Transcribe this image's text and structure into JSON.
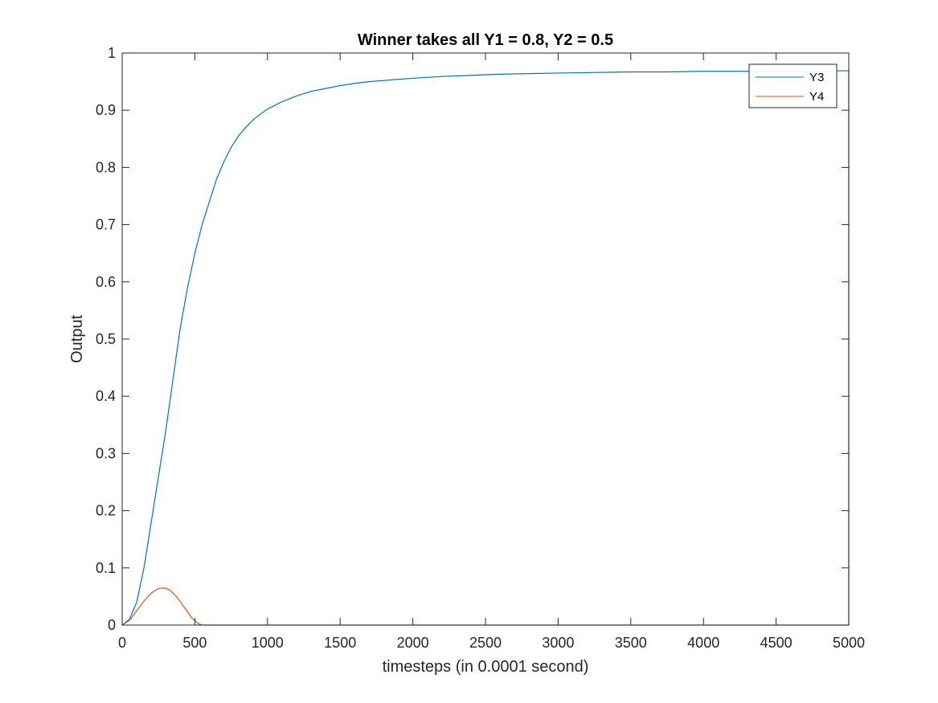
{
  "chart_data": {
    "type": "line",
    "title": "Winner takes all Y1 = 0.8, Y2 = 0.5",
    "xlabel": "timesteps (in 0.0001 second)",
    "ylabel": "Output",
    "xlim": [
      0,
      5000
    ],
    "ylim": [
      0,
      1
    ],
    "xticks": [
      0,
      500,
      1000,
      1500,
      2000,
      2500,
      3000,
      3500,
      4000,
      4500,
      5000
    ],
    "yticks": [
      0,
      0.1,
      0.2,
      0.3,
      0.4,
      0.5,
      0.6,
      0.7,
      0.8,
      0.9,
      1
    ],
    "xtick_labels": [
      "0",
      "500",
      "1000",
      "1500",
      "2000",
      "2500",
      "3000",
      "3500",
      "4000",
      "4500",
      "5000"
    ],
    "ytick_labels": [
      "0",
      "0.1",
      "0.2",
      "0.3",
      "0.4",
      "0.5",
      "0.6",
      "0.7",
      "0.8",
      "0.9",
      "1"
    ],
    "grid": false,
    "legend_position": "top-right",
    "series": [
      {
        "name": "Y3",
        "color": "#0072BD",
        "x": [
          0,
          50,
          100,
          150,
          200,
          250,
          300,
          350,
          400,
          450,
          500,
          550,
          600,
          650,
          700,
          750,
          800,
          850,
          900,
          950,
          1000,
          1100,
          1200,
          1300,
          1400,
          1500,
          1600,
          1700,
          1800,
          1900,
          2000,
          2200,
          2400,
          2600,
          2800,
          3000,
          3250,
          3500,
          3750,
          4000,
          4250,
          4500,
          4750,
          5000,
          5000
        ],
        "y": [
          0,
          0.01,
          0.04,
          0.1,
          0.18,
          0.26,
          0.34,
          0.43,
          0.52,
          0.59,
          0.65,
          0.7,
          0.74,
          0.78,
          0.81,
          0.835,
          0.855,
          0.87,
          0.883,
          0.893,
          0.902,
          0.915,
          0.925,
          0.933,
          0.938,
          0.943,
          0.947,
          0.95,
          0.952,
          0.954,
          0.956,
          0.959,
          0.961,
          0.963,
          0.964,
          0.965,
          0.966,
          0.967,
          0.967,
          0.968,
          0.968,
          0.968,
          0.969,
          0.969,
          0
        ]
      },
      {
        "name": "Y4",
        "color": "#D95319",
        "x": [
          0,
          50,
          100,
          150,
          200,
          250,
          290,
          330,
          380,
          430,
          480,
          520,
          550,
          600,
          1000,
          2000,
          3000,
          4000,
          5000
        ],
        "y": [
          0,
          0.008,
          0.025,
          0.042,
          0.056,
          0.064,
          0.065,
          0.061,
          0.048,
          0.03,
          0.012,
          0.003,
          0,
          0,
          0,
          0,
          0,
          0,
          0
        ]
      }
    ]
  }
}
